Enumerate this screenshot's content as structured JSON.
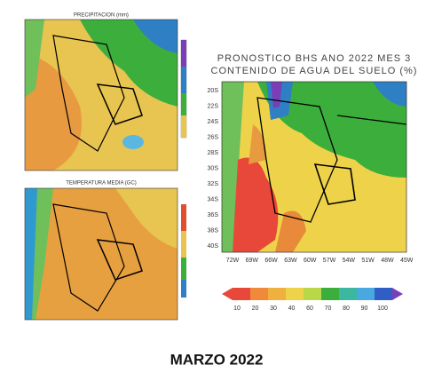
{
  "panels": [
    {
      "title": "PRECIPITACION (mm)"
    },
    {
      "title": "TEMPERATURA MEDIA (GC)"
    }
  ],
  "main_map": {
    "title_lines": [
      "PRONOSTICO BHS ANO 2022 MES 3",
      "CONTENIDO DE AGUA DEL SUELO (%)"
    ],
    "lat_labels": [
      "20S",
      "22S",
      "24S",
      "26S",
      "28S",
      "30S",
      "32S",
      "34S",
      "36S",
      "38S",
      "40S"
    ],
    "lon_labels": [
      "72W",
      "69W",
      "66W",
      "63W",
      "60W",
      "57W",
      "54W",
      "51W",
      "48W",
      "45W"
    ],
    "colorbar_labels": [
      "10",
      "20",
      "30",
      "40",
      "60",
      "70",
      "80",
      "90",
      "100"
    ]
  },
  "caption": "MARZO 2022"
}
